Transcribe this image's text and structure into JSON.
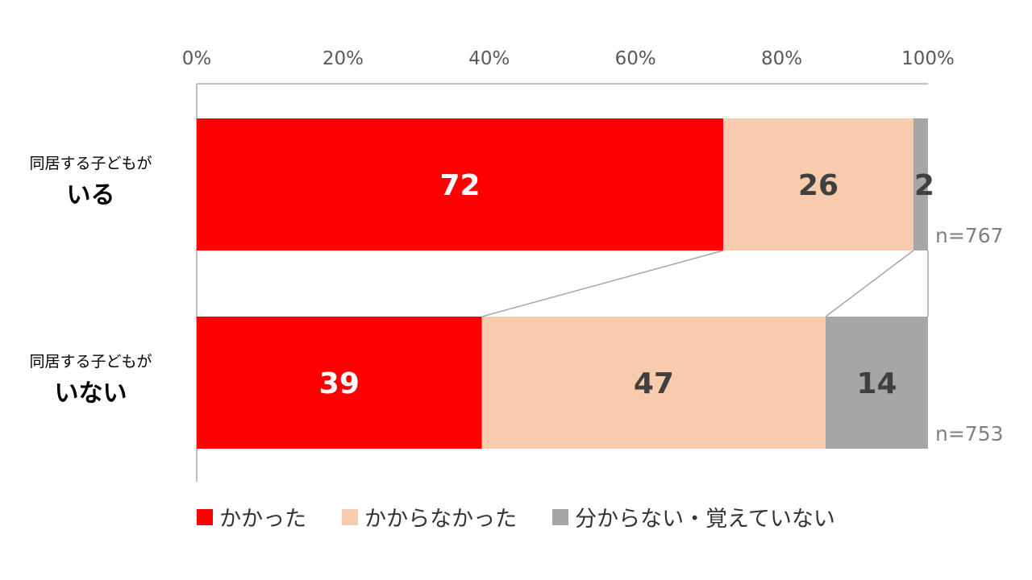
{
  "chart_data": {
    "type": "bar",
    "orientation": "horizontal",
    "stacked": "percent",
    "categories": [
      {
        "line1": "同居する子どもが",
        "line2": "いる",
        "n": "n=767"
      },
      {
        "line1": "同居する子どもが",
        "line2": "いない",
        "n": "n=753"
      }
    ],
    "series": [
      {
        "name": "かかった",
        "color": "#ff0000",
        "label_color": "#ffffff",
        "values": [
          72,
          39
        ]
      },
      {
        "name": "かからなかった",
        "color": "#f8cbad",
        "label_color": "#404040",
        "values": [
          26,
          47
        ]
      },
      {
        "name": "分からない・覚えていない",
        "color": "#a6a6a6",
        "label_color": "#404040",
        "values": [
          2,
          14
        ]
      }
    ],
    "xlim": [
      0,
      100
    ],
    "x_ticks": [
      "0%",
      "20%",
      "40%",
      "60%",
      "80%",
      "100%"
    ],
    "axis_position": "top",
    "grid": false,
    "connector_lines": true,
    "legend_position": "bottom"
  }
}
